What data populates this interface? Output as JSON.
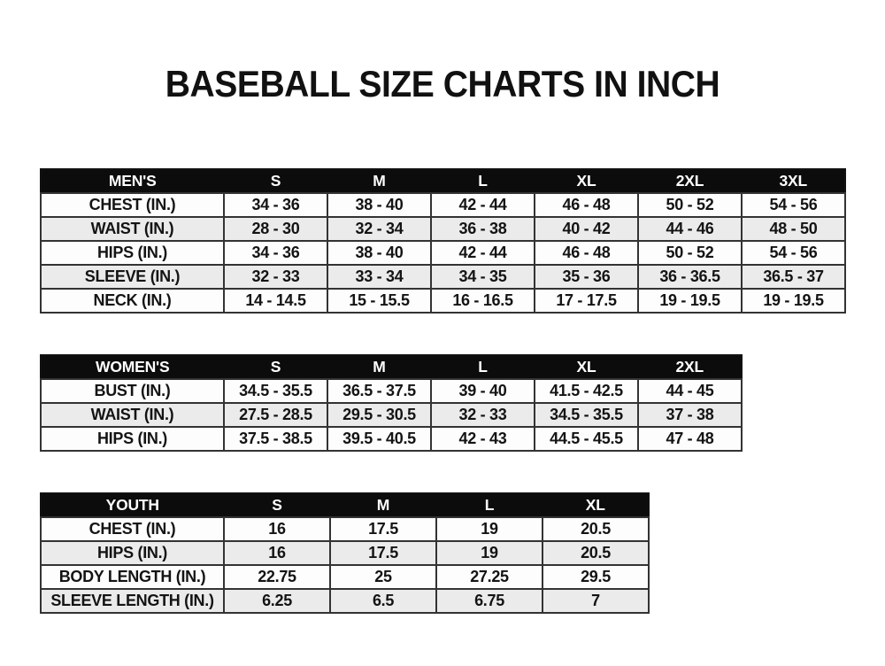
{
  "page": {
    "title": "BASEBALL SIZE CHARTS IN INCH"
  },
  "colors": {
    "header_bg": "#0c0c0c",
    "header_text": "#ffffff",
    "row_even_bg": "#ebebeb",
    "row_odd_bg": "#fdfdfd",
    "border": "#333333",
    "outer_border": "#111111",
    "text": "#141414",
    "page_bg": "#ffffff"
  },
  "chart_data": [
    {
      "type": "table",
      "name": "mens",
      "group_label": "MEN'S",
      "columns": [
        "MEN'S",
        "S",
        "M",
        "L",
        "XL",
        "2XL",
        "3XL"
      ],
      "rows": [
        [
          "CHEST (IN.)",
          "34 - 36",
          "38 - 40",
          "42 - 44",
          "46 - 48",
          "50 - 52",
          "54 - 56"
        ],
        [
          "WAIST (IN.)",
          "28 - 30",
          "32 - 34",
          "36 - 38",
          "40 - 42",
          "44 - 46",
          "48 - 50"
        ],
        [
          "HIPS (IN.)",
          "34 - 36",
          "38 - 40",
          "42 - 44",
          "46 - 48",
          "50 - 52",
          "54 - 56"
        ],
        [
          "SLEEVE (IN.)",
          "32 - 33",
          "33 - 34",
          "34 - 35",
          "35 - 36",
          "36 - 36.5",
          "36.5 - 37"
        ],
        [
          "NECK (IN.)",
          "14 - 14.5",
          "15 - 15.5",
          "16 - 16.5",
          "17 - 17.5",
          "19 - 19.5",
          "19 - 19.5"
        ]
      ]
    },
    {
      "type": "table",
      "name": "womens",
      "group_label": "WOMEN'S",
      "columns": [
        "WOMEN'S",
        "S",
        "M",
        "L",
        "XL",
        "2XL"
      ],
      "rows": [
        [
          "BUST (IN.)",
          "34.5 - 35.5",
          "36.5 - 37.5",
          "39 - 40",
          "41.5 - 42.5",
          "44 - 45"
        ],
        [
          "WAIST (IN.)",
          "27.5 - 28.5",
          "29.5 - 30.5",
          "32 - 33",
          "34.5 - 35.5",
          "37 - 38"
        ],
        [
          "HIPS (IN.)",
          "37.5 - 38.5",
          "39.5 - 40.5",
          "42 - 43",
          "44.5 - 45.5",
          "47 - 48"
        ]
      ]
    },
    {
      "type": "table",
      "name": "youth",
      "group_label": "YOUTH",
      "columns": [
        "YOUTH",
        "S",
        "M",
        "L",
        "XL"
      ],
      "rows": [
        [
          "CHEST (IN.)",
          "16",
          "17.5",
          "19",
          "20.5"
        ],
        [
          "HIPS (IN.)",
          "16",
          "17.5",
          "19",
          "20.5"
        ],
        [
          "BODY LENGTH (IN.)",
          "22.75",
          "25",
          "27.25",
          "29.5"
        ],
        [
          "SLEEVE LENGTH (IN.)",
          "6.25",
          "6.5",
          "6.75",
          "7"
        ]
      ]
    }
  ]
}
